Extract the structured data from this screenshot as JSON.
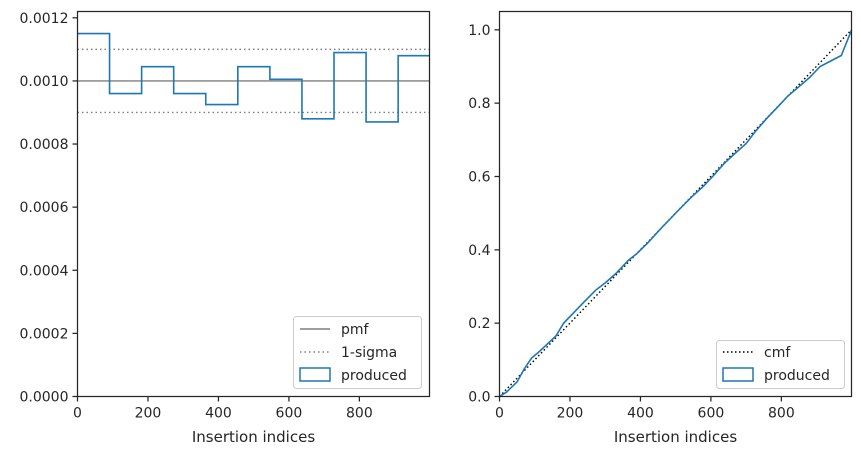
{
  "chart_data": [
    {
      "type": "step",
      "xlabel": "Insertion indices",
      "ylabel": "",
      "title": "",
      "xlim": [
        0,
        999
      ],
      "ylim": [
        0,
        0.00122
      ],
      "xticks": [
        0,
        200,
        400,
        600,
        800
      ],
      "yticks": [
        0.0,
        0.0002,
        0.0004,
        0.0006,
        0.0008,
        0.001,
        0.0012
      ],
      "xtick_labels": [
        "0",
        "200",
        "400",
        "600",
        "800"
      ],
      "ytick_labels": [
        "0.0000",
        "0.0002",
        "0.0004",
        "0.0006",
        "0.0008",
        "0.0010",
        "0.0012"
      ],
      "reference_lines": [
        {
          "name": "pmf",
          "y": 0.001,
          "style": "solid",
          "color": "#7f7f7f"
        },
        {
          "name": "1-sigma",
          "y": 0.0011,
          "style": "dotted",
          "color": "#7f7f7f"
        },
        {
          "name": "1-sigma",
          "y": 0.0009,
          "style": "dotted",
          "color": "#7f7f7f"
        }
      ],
      "series": [
        {
          "name": "produced",
          "color": "#1f77b4",
          "bin_edges": [
            0,
            91,
            182,
            273,
            364,
            455,
            546,
            637,
            728,
            819,
            910,
            999
          ],
          "values": [
            0.00115,
            0.00096,
            0.001045,
            0.00096,
            0.000925,
            0.001045,
            0.001005,
            0.00088,
            0.00109,
            0.00087,
            0.00108
          ]
        }
      ],
      "legend": {
        "position": "lower-right",
        "entries": [
          "pmf",
          "1-sigma",
          "produced"
        ]
      },
      "grid": false
    },
    {
      "type": "line",
      "xlabel": "Insertion indices",
      "ylabel": "",
      "title": "",
      "xlim": [
        0,
        999
      ],
      "ylim": [
        0,
        1.05
      ],
      "xticks": [
        0,
        200,
        400,
        600,
        800
      ],
      "yticks": [
        0.0,
        0.2,
        0.4,
        0.6,
        0.8,
        1.0
      ],
      "xtick_labels": [
        "0",
        "200",
        "400",
        "600",
        "800"
      ],
      "ytick_labels": [
        "0.0",
        "0.2",
        "0.4",
        "0.6",
        "0.8",
        "1.0"
      ],
      "series": [
        {
          "name": "cmf",
          "color": "#000000",
          "style": "dotted",
          "x": [
            0,
            999
          ],
          "y": [
            0,
            1.0
          ]
        },
        {
          "name": "produced",
          "color": "#1f77b4",
          "style": "solid",
          "x": [
            0,
            20,
            50,
            70,
            91,
            110,
            130,
            160,
            182,
            210,
            240,
            273,
            300,
            330,
            364,
            390,
            420,
            455,
            480,
            510,
            546,
            575,
            605,
            637,
            665,
            700,
            728,
            760,
            790,
            819,
            850,
            880,
            910,
            940,
            970,
            999
          ],
          "y": [
            0,
            0.012,
            0.04,
            0.075,
            0.105,
            0.12,
            0.138,
            0.165,
            0.2,
            0.228,
            0.258,
            0.29,
            0.31,
            0.335,
            0.37,
            0.39,
            0.418,
            0.455,
            0.48,
            0.51,
            0.545,
            0.57,
            0.6,
            0.635,
            0.66,
            0.69,
            0.725,
            0.76,
            0.79,
            0.82,
            0.845,
            0.87,
            0.9,
            0.915,
            0.93,
            0.999
          ]
        }
      ],
      "legend": {
        "position": "lower-right",
        "entries": [
          "cmf",
          "produced"
        ]
      },
      "grid": false
    }
  ]
}
